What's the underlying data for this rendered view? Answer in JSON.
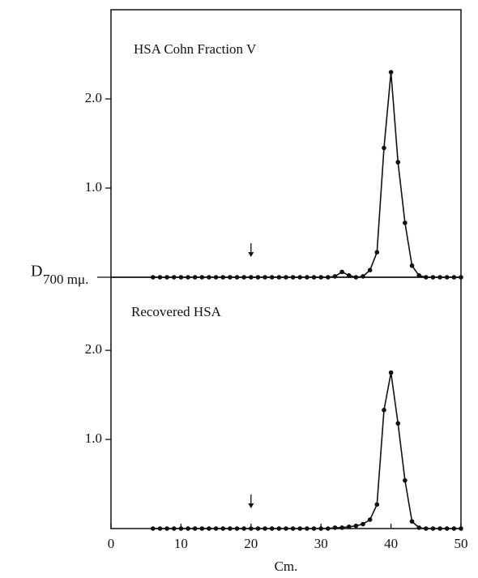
{
  "chart_data": [
    {
      "type": "line",
      "title": "HSA Cohn Fraction V",
      "ylabel": "D",
      "ylabel_sub": "700 mμ.",
      "color": "#111111",
      "x": [
        6,
        7,
        8,
        9,
        10,
        11,
        12,
        13,
        14,
        15,
        16,
        17,
        18,
        19,
        20,
        21,
        22,
        23,
        24,
        25,
        26,
        27,
        28,
        29,
        30,
        31,
        32,
        33,
        34,
        35,
        36,
        37,
        38,
        39,
        40,
        41,
        42,
        43,
        44,
        45,
        46,
        47,
        48,
        49,
        50
      ],
      "values": [
        0,
        0,
        0,
        0,
        0,
        0,
        0,
        0,
        0,
        0,
        0,
        0,
        0,
        0,
        0,
        0,
        0,
        0,
        0,
        0,
        0,
        0,
        0,
        0,
        0,
        0,
        0.01,
        0.06,
        0.02,
        0,
        0.01,
        0.08,
        0.28,
        1.45,
        2.3,
        1.29,
        0.61,
        0.13,
        0.02,
        0,
        0,
        0,
        0,
        0,
        0
      ],
      "xlim": [
        0,
        50
      ],
      "ylim": [
        0,
        3.0
      ],
      "yticks": [
        {
          "value": 1,
          "label": "1.0"
        },
        {
          "value": 2,
          "label": "2.0"
        }
      ],
      "arrow_x": 20
    },
    {
      "type": "line",
      "title": "Recovered HSA",
      "xlabel": "Cm.",
      "color": "#111111",
      "x": [
        6,
        7,
        8,
        9,
        10,
        11,
        12,
        13,
        14,
        15,
        16,
        17,
        18,
        19,
        20,
        21,
        22,
        23,
        24,
        25,
        26,
        27,
        28,
        29,
        30,
        31,
        32,
        33,
        34,
        35,
        36,
        37,
        38,
        39,
        40,
        41,
        42,
        43,
        44,
        45,
        46,
        47,
        48,
        49,
        50
      ],
      "values": [
        0,
        0,
        0,
        0,
        0,
        0,
        0,
        0,
        0,
        0,
        0,
        0,
        0,
        0,
        0,
        0,
        0,
        0,
        0,
        0,
        0,
        0,
        0,
        0,
        0,
        0,
        0.01,
        0.01,
        0.02,
        0.03,
        0.05,
        0.1,
        0.27,
        1.33,
        1.75,
        1.18,
        0.54,
        0.08,
        0.01,
        0,
        0,
        0,
        0,
        0,
        0
      ],
      "xlim": [
        0,
        50
      ],
      "ylim": [
        0,
        2.82
      ],
      "yticks": [
        {
          "value": 1,
          "label": "1.0"
        },
        {
          "value": 2,
          "label": "2.0"
        }
      ],
      "xticks": [
        0,
        10,
        20,
        30,
        40,
        50
      ],
      "arrow_x": 20
    }
  ]
}
